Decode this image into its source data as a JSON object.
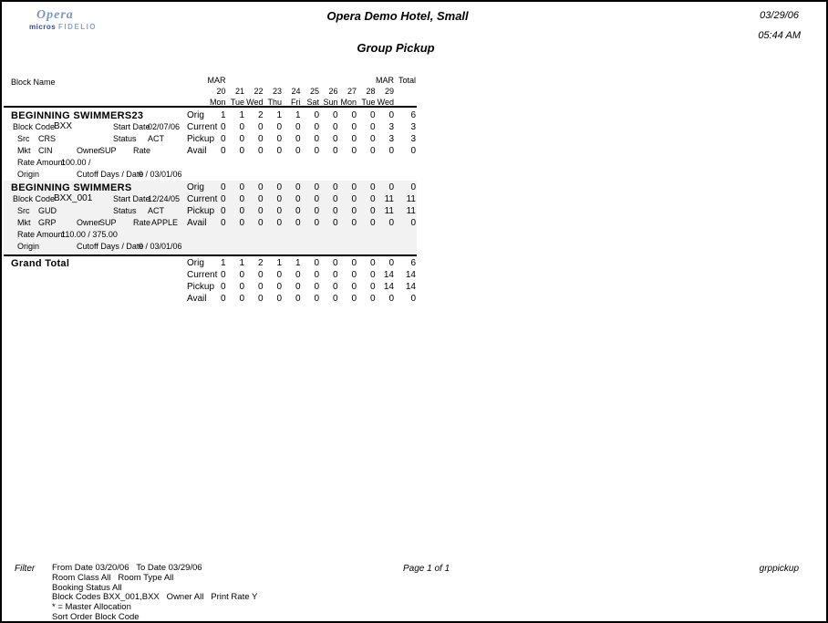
{
  "header": {
    "logo": {
      "name": "Opera",
      "sub1": "micros",
      "sub2": "FIDELIO"
    },
    "hotel_name": "Opera Demo Hotel, Small",
    "date": "03/29/06",
    "time": "05:44 AM",
    "report_title": "Group Pickup"
  },
  "table": {
    "block_name_header": "Block Name",
    "month_row": [
      "MAR",
      "",
      "",
      "",
      "",
      "",
      "",
      "",
      "",
      "MAR"
    ],
    "total_header": "Total",
    "dates": [
      "20",
      "21",
      "22",
      "23",
      "24",
      "25",
      "26",
      "27",
      "28",
      "29"
    ],
    "days": [
      "Mon",
      "Tue",
      "Wed",
      "Thu",
      "Fri",
      "Sat",
      "Sun",
      "Mon",
      "Tue",
      "Wed"
    ],
    "blocks": [
      {
        "name": "BEGINNING SWIMMERS23",
        "details": {
          "block_code_label": "Block Code",
          "block_code": "BXX",
          "start_date_label": "Start Date",
          "start_date": "02/07/06",
          "src_label": "Src",
          "src": "CRS",
          "status_label": "Status",
          "status": "ACT",
          "mkt_label": "Mkt",
          "mkt": "CIN",
          "owner_label": "Owner",
          "owner": "SUP",
          "rate_label": "Rate",
          "rate": "",
          "rate_amount_label": "Rate Amount",
          "rate_amount": "100.00 /",
          "origin_label": "Origin",
          "cutoff_label": "Cutoff Days / Date",
          "cutoff_value": "0 / 03/01/06"
        },
        "rows": [
          {
            "label": "Orig",
            "values": [
              "1",
              "1",
              "2",
              "1",
              "1",
              "0",
              "0",
              "0",
              "0",
              "0"
            ],
            "total": "6"
          },
          {
            "label": "Current",
            "values": [
              "0",
              "0",
              "0",
              "0",
              "0",
              "0",
              "0",
              "0",
              "0",
              "3"
            ],
            "total": "3"
          },
          {
            "label": "Pickup",
            "values": [
              "0",
              "0",
              "0",
              "0",
              "0",
              "0",
              "0",
              "0",
              "0",
              "3"
            ],
            "total": "3"
          },
          {
            "label": "Avail",
            "values": [
              "0",
              "0",
              "0",
              "0",
              "0",
              "0",
              "0",
              "0",
              "0",
              "0"
            ],
            "total": "0"
          }
        ]
      },
      {
        "name": "BEGINNING SWIMMERS",
        "details": {
          "block_code_label": "Block Code",
          "block_code": "BXX_001",
          "start_date_label": "Start Date",
          "start_date": "12/24/05",
          "src_label": "Src",
          "src": "GUD",
          "status_label": "Status",
          "status": "ACT",
          "mkt_label": "Mkt",
          "mkt": "GRP",
          "owner_label": "Owner",
          "owner": "SUP",
          "rate_label": "Rate",
          "rate": "APPLE",
          "rate_amount_label": "Rate Amount",
          "rate_amount": "110.00 / 375.00",
          "origin_label": "Origin",
          "cutoff_label": "Cutoff Days / Date",
          "cutoff_value": "0 / 03/01/06"
        },
        "rows": [
          {
            "label": "Orig",
            "values": [
              "0",
              "0",
              "0",
              "0",
              "0",
              "0",
              "0",
              "0",
              "0",
              "0"
            ],
            "total": "0"
          },
          {
            "label": "Current",
            "values": [
              "0",
              "0",
              "0",
              "0",
              "0",
              "0",
              "0",
              "0",
              "0",
              "11"
            ],
            "total": "11"
          },
          {
            "label": "Pickup",
            "values": [
              "0",
              "0",
              "0",
              "0",
              "0",
              "0",
              "0",
              "0",
              "0",
              "11"
            ],
            "total": "11"
          },
          {
            "label": "Avail",
            "values": [
              "0",
              "0",
              "0",
              "0",
              "0",
              "0",
              "0",
              "0",
              "0",
              "0"
            ],
            "total": "0"
          }
        ]
      }
    ],
    "grand_total": {
      "name": "Grand Total",
      "rows": [
        {
          "label": "Orig",
          "values": [
            "1",
            "1",
            "2",
            "1",
            "1",
            "0",
            "0",
            "0",
            "0",
            "0"
          ],
          "total": "6"
        },
        {
          "label": "Current",
          "values": [
            "0",
            "0",
            "0",
            "0",
            "0",
            "0",
            "0",
            "0",
            "0",
            "14"
          ],
          "total": "14"
        },
        {
          "label": "Pickup",
          "values": [
            "0",
            "0",
            "0",
            "0",
            "0",
            "0",
            "0",
            "0",
            "0",
            "14"
          ],
          "total": "14"
        },
        {
          "label": "Avail",
          "values": [
            "0",
            "0",
            "0",
            "0",
            "0",
            "0",
            "0",
            "0",
            "0",
            "0"
          ],
          "total": "0"
        }
      ]
    }
  },
  "footer": {
    "filter_label": "Filter",
    "filter_lines": [
      "From Date 03/20/06   To Date 03/29/06",
      "Room Class All   Room Type All",
      "Booking Status All",
      "Block Codes BXX_001,BXX   Owner All   Print Rate Y",
      "* = Master Allocation",
      "Sort Order Block Code"
    ],
    "page_label": "Page 1 of 1",
    "report_code": "grppickup"
  },
  "colors": {
    "shaded_row": "#f2f2f2",
    "logo_primary": "#7b97c6",
    "logo_dark": "#2f4f9e"
  }
}
